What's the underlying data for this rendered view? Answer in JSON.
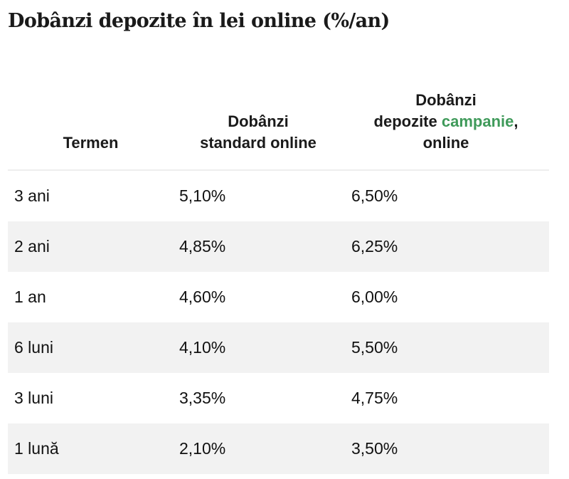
{
  "page": {
    "title": "Dobânzi depozite în lei online (%/an)"
  },
  "table": {
    "headers": {
      "term": "Termen",
      "standard_line1": "Dobânzi",
      "standard_line2": "standard online",
      "campaign_line1": "Dobânzi",
      "campaign_pre": "depozite ",
      "campaign_highlight": "campanie",
      "campaign_post": ",",
      "campaign_line3": "online"
    },
    "rows": [
      {
        "term": "3 ani",
        "standard": "5,10%",
        "campaign": "6,50%"
      },
      {
        "term": "2 ani",
        "standard": "4,85%",
        "campaign": "6,25%"
      },
      {
        "term": "1 an",
        "standard": "4,60%",
        "campaign": "6,00%"
      },
      {
        "term": "6 luni",
        "standard": "4,10%",
        "campaign": "5,50%"
      },
      {
        "term": "3 luni",
        "standard": "3,35%",
        "campaign": "4,75%"
      },
      {
        "term": "1 lună",
        "standard": "2,10%",
        "campaign": "3,50%"
      }
    ]
  },
  "colors": {
    "highlight": "#3f9a5a",
    "zebra": "#f2f2f2",
    "text": "#111111"
  }
}
